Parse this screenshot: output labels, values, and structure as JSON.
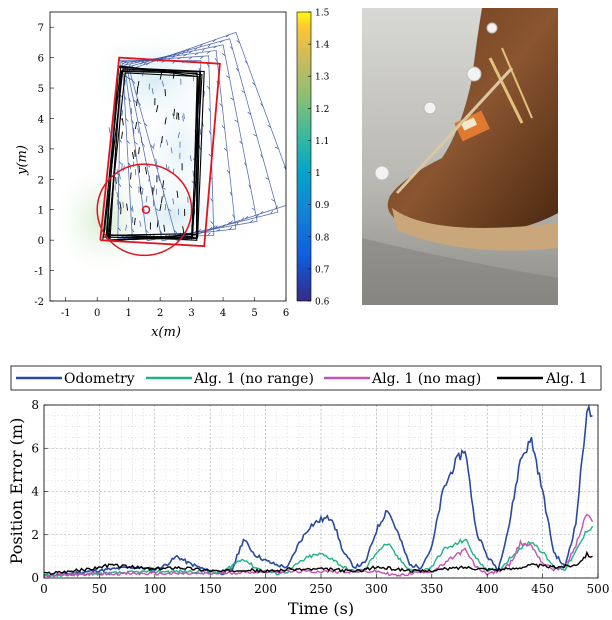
{
  "colors": {
    "odometry": "#2a4aa0",
    "alg1_no_range": "#1fb386",
    "alg1_no_mag": "#c553b0",
    "alg1": "#000000",
    "trajectory_red": "#e0141e",
    "arrow_blue": "#3e5aa6"
  },
  "colorbar": {
    "ticks": [
      "1.5",
      "1.4",
      "1.3",
      "1.2",
      "1.1",
      "1",
      "0.9",
      "0.8",
      "0.7",
      "0.6"
    ],
    "colormap": "parula",
    "range": [
      0.6,
      1.5
    ]
  },
  "chart_data": [
    {
      "type": "heatmap",
      "xlabel": "x(m)",
      "ylabel": "y(m)",
      "xticks": [
        "-1",
        "0",
        "1",
        "2",
        "3",
        "4",
        "5",
        "6"
      ],
      "yticks": [
        "-2",
        "-1",
        "0",
        "1",
        "2",
        "3",
        "4",
        "5",
        "6",
        "7"
      ],
      "xlim": [
        -1.5,
        6
      ],
      "ylim": [
        -2,
        7.5
      ],
      "red_rectangle": [
        [
          0.1,
          0.0
        ],
        [
          0.7,
          6.0
        ],
        [
          3.9,
          5.8
        ],
        [
          3.4,
          -0.2
        ],
        [
          0.1,
          0.0
        ]
      ],
      "red_circle": {
        "center": [
          1.5,
          1.0
        ],
        "radius": 1.5
      },
      "red_marker": [
        1.55,
        1.0
      ]
    },
    {
      "type": "line",
      "xlabel": "Time (s)",
      "ylabel": "Position Error (m)",
      "xlim": [
        0,
        500
      ],
      "ylim": [
        0,
        8
      ],
      "xticks": [
        "0",
        "50",
        "100",
        "150",
        "200",
        "250",
        "300",
        "350",
        "400",
        "450",
        "500"
      ],
      "yticks": [
        "0",
        "2",
        "4",
        "6",
        "8"
      ],
      "legend_position": "top",
      "series": [
        {
          "name": "Odometry",
          "x": [
            0,
            20,
            40,
            60,
            80,
            100,
            110,
            120,
            130,
            140,
            150,
            160,
            170,
            180,
            190,
            200,
            210,
            220,
            230,
            240,
            250,
            260,
            270,
            280,
            290,
            300,
            310,
            320,
            330,
            340,
            350,
            360,
            370,
            380,
            390,
            400,
            410,
            420,
            430,
            440,
            450,
            460,
            470,
            480,
            490,
            495
          ],
          "y": [
            0.1,
            0.2,
            0.3,
            0.4,
            0.5,
            0.4,
            0.6,
            1.0,
            0.7,
            0.5,
            0.3,
            0.2,
            0.4,
            1.8,
            1.1,
            0.8,
            0.6,
            0.5,
            1.6,
            2.4,
            2.7,
            2.8,
            1.2,
            0.5,
            0.7,
            2.2,
            3.2,
            2.0,
            0.6,
            0.5,
            1.4,
            4.0,
            5.2,
            6.0,
            2.2,
            1.0,
            0.4,
            2.5,
            5.5,
            6.4,
            4.0,
            1.2,
            0.5,
            2.5,
            7.8,
            7.5
          ]
        },
        {
          "name": "Alg. 1 (no range)",
          "x": [
            0,
            50,
            100,
            150,
            160,
            170,
            180,
            190,
            200,
            210,
            220,
            230,
            240,
            250,
            260,
            270,
            280,
            290,
            300,
            310,
            320,
            330,
            340,
            350,
            360,
            370,
            380,
            390,
            400,
            410,
            420,
            430,
            440,
            450,
            460,
            470,
            480,
            490,
            495
          ],
          "y": [
            0.1,
            0.2,
            0.3,
            0.3,
            0.2,
            0.6,
            0.9,
            0.5,
            0.3,
            0.2,
            0.3,
            0.7,
            1.0,
            1.1,
            0.9,
            0.5,
            0.3,
            0.4,
            1.2,
            1.6,
            0.9,
            0.4,
            0.3,
            0.5,
            1.3,
            1.5,
            1.8,
            0.9,
            0.4,
            0.3,
            0.9,
            1.4,
            1.7,
            1.2,
            0.5,
            0.4,
            1.2,
            2.2,
            2.4
          ]
        },
        {
          "name": "Alg. 1 (no mag)",
          "x": [
            0,
            50,
            100,
            150,
            200,
            250,
            300,
            310,
            320,
            330,
            340,
            350,
            360,
            370,
            380,
            390,
            400,
            410,
            420,
            430,
            440,
            450,
            460,
            470,
            480,
            490,
            495
          ],
          "y": [
            0.1,
            0.2,
            0.2,
            0.2,
            0.3,
            0.3,
            0.3,
            0.2,
            0.1,
            0.2,
            0.3,
            0.3,
            0.6,
            1.0,
            1.3,
            0.5,
            0.2,
            0.3,
            0.6,
            1.6,
            1.5,
            0.7,
            0.4,
            0.5,
            1.5,
            3.0,
            2.6
          ]
        },
        {
          "name": "Alg. 1",
          "x": [
            0,
            20,
            40,
            60,
            80,
            100,
            120,
            140,
            160,
            180,
            200,
            220,
            240,
            260,
            280,
            300,
            320,
            340,
            360,
            380,
            400,
            420,
            440,
            460,
            480,
            490,
            495
          ],
          "y": [
            0.2,
            0.3,
            0.4,
            0.6,
            0.5,
            0.4,
            0.5,
            0.4,
            0.3,
            0.4,
            0.3,
            0.4,
            0.4,
            0.4,
            0.3,
            0.5,
            0.4,
            0.3,
            0.4,
            0.5,
            0.4,
            0.4,
            0.6,
            0.5,
            0.6,
            1.1,
            1.0
          ]
        }
      ]
    }
  ]
}
